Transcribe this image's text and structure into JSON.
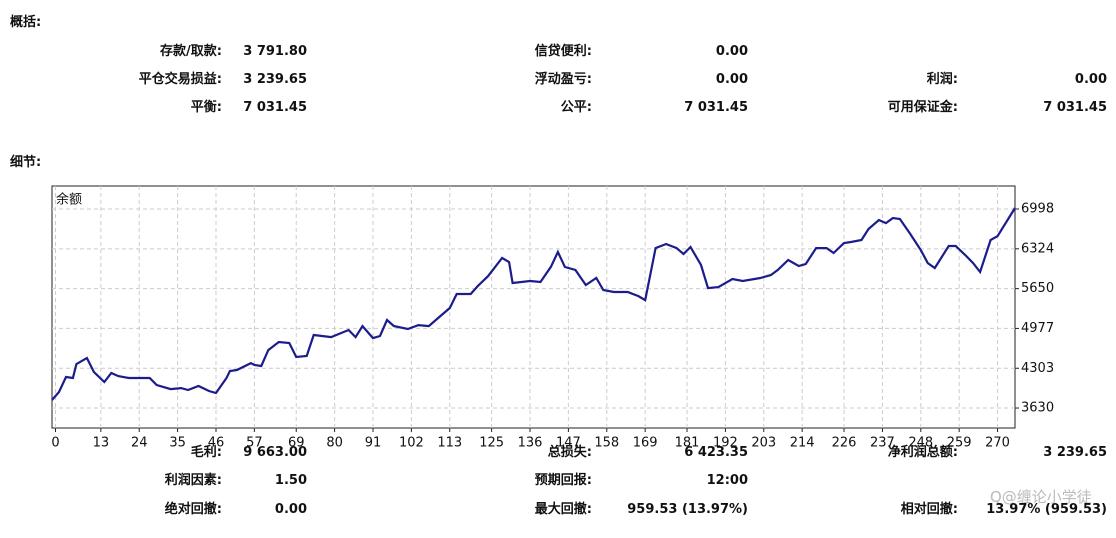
{
  "summary_title": "概括:",
  "summary": [
    [
      {
        "label": "存款/取款:",
        "value": "3 791.80"
      },
      {
        "label": "信贷便利:",
        "value": "0.00"
      }
    ],
    [
      {
        "label": "平仓交易损益:",
        "value": "3 239.65"
      },
      {
        "label": "浮动盈亏:",
        "value": "0.00"
      },
      {
        "label": "利润:",
        "value": "0.00"
      }
    ],
    [
      {
        "label": "平衡:",
        "value": "7 031.45"
      },
      {
        "label": "公平:",
        "value": "7 031.45"
      },
      {
        "label": "可用保证金:",
        "value": "7 031.45"
      }
    ]
  ],
  "details_title": "细节:",
  "chart_data": {
    "type": "line",
    "series_label": "余额",
    "color": "#1c1c8c",
    "grid": true,
    "xlim": [
      -1,
      275
    ],
    "ylim": [
      3292,
      7387
    ],
    "xticks": [
      0,
      13,
      24,
      35,
      46,
      57,
      69,
      80,
      91,
      102,
      113,
      125,
      136,
      147,
      158,
      169,
      181,
      192,
      203,
      214,
      226,
      237,
      248,
      259,
      270
    ],
    "yticks": [
      3630,
      4303,
      4977,
      5650,
      6324,
      6998
    ],
    "x": [
      -1,
      1,
      3,
      5,
      6,
      9,
      11,
      14,
      16,
      18,
      21,
      27,
      29,
      33,
      36,
      38,
      41,
      44,
      46,
      49,
      50,
      52,
      56,
      57,
      59,
      61,
      64,
      67,
      69,
      72,
      74,
      79,
      84,
      86,
      88,
      91,
      93,
      95,
      97,
      101,
      104,
      107,
      110,
      113,
      115,
      119,
      121,
      124,
      128,
      130,
      131,
      136,
      139,
      142,
      144,
      146,
      149,
      152,
      155,
      157,
      160,
      164,
      167,
      169,
      172,
      175,
      178,
      180,
      182,
      185,
      187,
      190,
      194,
      197,
      202,
      205,
      207,
      210,
      213,
      215,
      218,
      221,
      223,
      226,
      228,
      231,
      233,
      236,
      238,
      240,
      242,
      245,
      248,
      250,
      252,
      256,
      258,
      261,
      263,
      265,
      268,
      270,
      275
    ],
    "values": [
      3765,
      3901,
      4155,
      4138,
      4374,
      4476,
      4239,
      4070,
      4222,
      4171,
      4138,
      4138,
      4019,
      3951,
      3968,
      3935,
      4002,
      3918,
      3884,
      4138,
      4256,
      4273,
      4391,
      4358,
      4341,
      4611,
      4747,
      4730,
      4493,
      4510,
      4865,
      4831,
      4950,
      4831,
      5017,
      4814,
      4848,
      5119,
      5017,
      4967,
      5034,
      5017,
      5170,
      5322,
      5559,
      5559,
      5694,
      5863,
      6168,
      6100,
      5745,
      5779,
      5762,
      6019,
      6270,
      6016,
      5965,
      5711,
      5830,
      5627,
      5593,
      5593,
      5525,
      5457,
      6337,
      6405,
      6337,
      6236,
      6354,
      6050,
      5660,
      5677,
      5813,
      5779,
      5830,
      5880,
      5965,
      6134,
      6033,
      6066,
      6337,
      6337,
      6253,
      6422,
      6439,
      6473,
      6659,
      6811,
      6760,
      6845,
      6828,
      6574,
      6303,
      6083,
      5999,
      6371,
      6371,
      6202,
      6083,
      5931,
      6473,
      6540,
      7014
    ]
  },
  "stats": [
    [
      {
        "label": "毛利:",
        "value": "9 663.00"
      },
      {
        "label": "总损失:",
        "value": "6 423.35"
      },
      {
        "label": "净利润总额:",
        "value": "3 239.65"
      }
    ],
    [
      {
        "label": "利润因素:",
        "value": "1.50"
      },
      {
        "label": "预期回报:",
        "value": "12:00"
      }
    ],
    [
      {
        "label": "绝对回撤:",
        "value": "0.00"
      },
      {
        "label": "最大回撤:",
        "value": "959.53 (13.97%)"
      },
      {
        "label": "相对回撤:",
        "value": "13.97% (959.53)"
      }
    ]
  ],
  "watermark": "Q@缠论小学徒"
}
